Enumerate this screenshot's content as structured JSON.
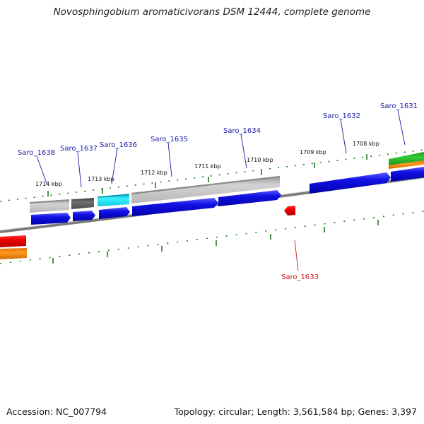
{
  "title": "Novosphingobium aromaticivorans DSM 12444, complete genome",
  "footer": {
    "accession": "Accession: NC_007794",
    "summary": "Topology: circular; Length: 3,561,584 bp; Genes: 3,397"
  },
  "kbp_labels": [
    "1714 kbp",
    "1713 kbp",
    "1712 kbp",
    "1711 kbp",
    "1710 kbp",
    "1709 kbp",
    "1708 kbp"
  ],
  "gene_labels": [
    "Saro_1638",
    "Saro_1637",
    "Saro_1636",
    "Saro_1635",
    "Saro_1634",
    "Saro_1632",
    "Saro_1631",
    "Saro_1633"
  ],
  "colors": {
    "cds": "#1010e0",
    "gene_label_forward": "#1a1aa8",
    "gene_label_reverse": "#cc1111",
    "tick": "#1e7a1e",
    "backbone": "#808080"
  }
}
